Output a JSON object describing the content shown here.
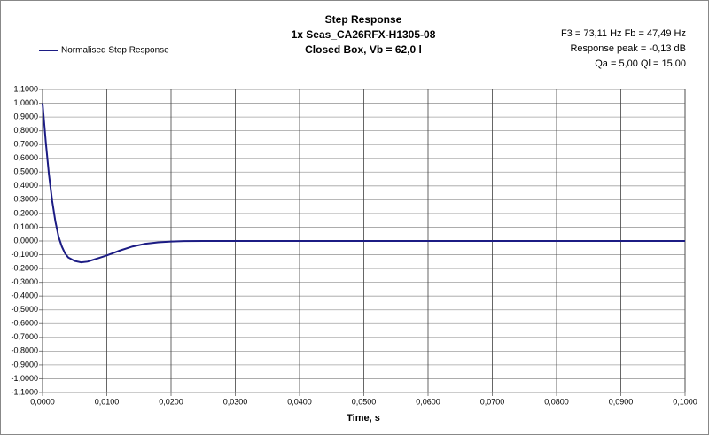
{
  "chart_data": {
    "type": "line",
    "title": [
      "Step Response",
      "1x Seas_CA26RFX-H1305-08",
      "Closed Box, Vb = 62,0 l"
    ],
    "annotations": [
      "F3 = 73,11 Hz  Fb = 47,49 Hz",
      "Response peak = -0,13 dB",
      "Qa = 5,00  Ql = 15,00"
    ],
    "x_label": "Time, s",
    "xlim": [
      0,
      0.1
    ],
    "ylim": [
      -1.1,
      1.1
    ],
    "xticks": [
      {
        "value": 0,
        "label": "0,0000"
      },
      {
        "value": 0.01,
        "label": "0,0100"
      },
      {
        "value": 0.02,
        "label": "0,0200"
      },
      {
        "value": 0.03,
        "label": "0,0300"
      },
      {
        "value": 0.04,
        "label": "0,0400"
      },
      {
        "value": 0.05,
        "label": "0,0500"
      },
      {
        "value": 0.06,
        "label": "0,0600"
      },
      {
        "value": 0.07,
        "label": "0,0700"
      },
      {
        "value": 0.08,
        "label": "0,0800"
      },
      {
        "value": 0.09,
        "label": "0,0900"
      },
      {
        "value": 0.1,
        "label": "0,1000"
      }
    ],
    "yticks": [
      {
        "value": 1.1,
        "label": "1,1000"
      },
      {
        "value": 1.0,
        "label": "1,0000"
      },
      {
        "value": 0.9,
        "label": "0,9000"
      },
      {
        "value": 0.8,
        "label": "0,8000"
      },
      {
        "value": 0.7,
        "label": "0,7000"
      },
      {
        "value": 0.6,
        "label": "0,6000"
      },
      {
        "value": 0.5,
        "label": "0,5000"
      },
      {
        "value": 0.4,
        "label": "0,4000"
      },
      {
        "value": 0.3,
        "label": "0,3000"
      },
      {
        "value": 0.2,
        "label": "0,2000"
      },
      {
        "value": 0.1,
        "label": "0,1000"
      },
      {
        "value": 0,
        "label": "0,0000"
      },
      {
        "value": -0.1,
        "label": "-0,1000"
      },
      {
        "value": -0.2,
        "label": "-0,2000"
      },
      {
        "value": -0.3,
        "label": "-0,3000"
      },
      {
        "value": -0.4,
        "label": "-0,4000"
      },
      {
        "value": -0.5,
        "label": "-0,5000"
      },
      {
        "value": -0.6,
        "label": "-0,6000"
      },
      {
        "value": -0.7,
        "label": "-0,7000"
      },
      {
        "value": -0.8,
        "label": "-0,8000"
      },
      {
        "value": -0.9,
        "label": "-0,9000"
      },
      {
        "value": -1.0,
        "label": "-1,0000"
      },
      {
        "value": -1.1,
        "label": "-1,1000"
      }
    ],
    "grid": true,
    "legend_position": "top-left",
    "x": [
      0,
      0.0005,
      0.001,
      0.0015,
      0.002,
      0.0025,
      0.003,
      0.0035,
      0.004,
      0.005,
      0.006,
      0.007,
      0.008,
      0.009,
      0.01,
      0.012,
      0.014,
      0.016,
      0.018,
      0.02,
      0.022,
      0.025,
      0.03,
      0.1
    ],
    "series": [
      {
        "name": "Normalised Step Response",
        "color": "#1c1c84",
        "values": [
          1.0,
          0.72,
          0.48,
          0.29,
          0.14,
          0.03,
          -0.04,
          -0.09,
          -0.12,
          -0.145,
          -0.155,
          -0.15,
          -0.135,
          -0.12,
          -0.105,
          -0.07,
          -0.04,
          -0.02,
          -0.01,
          -0.004,
          -0.001,
          0,
          0,
          0
        ]
      }
    ]
  }
}
